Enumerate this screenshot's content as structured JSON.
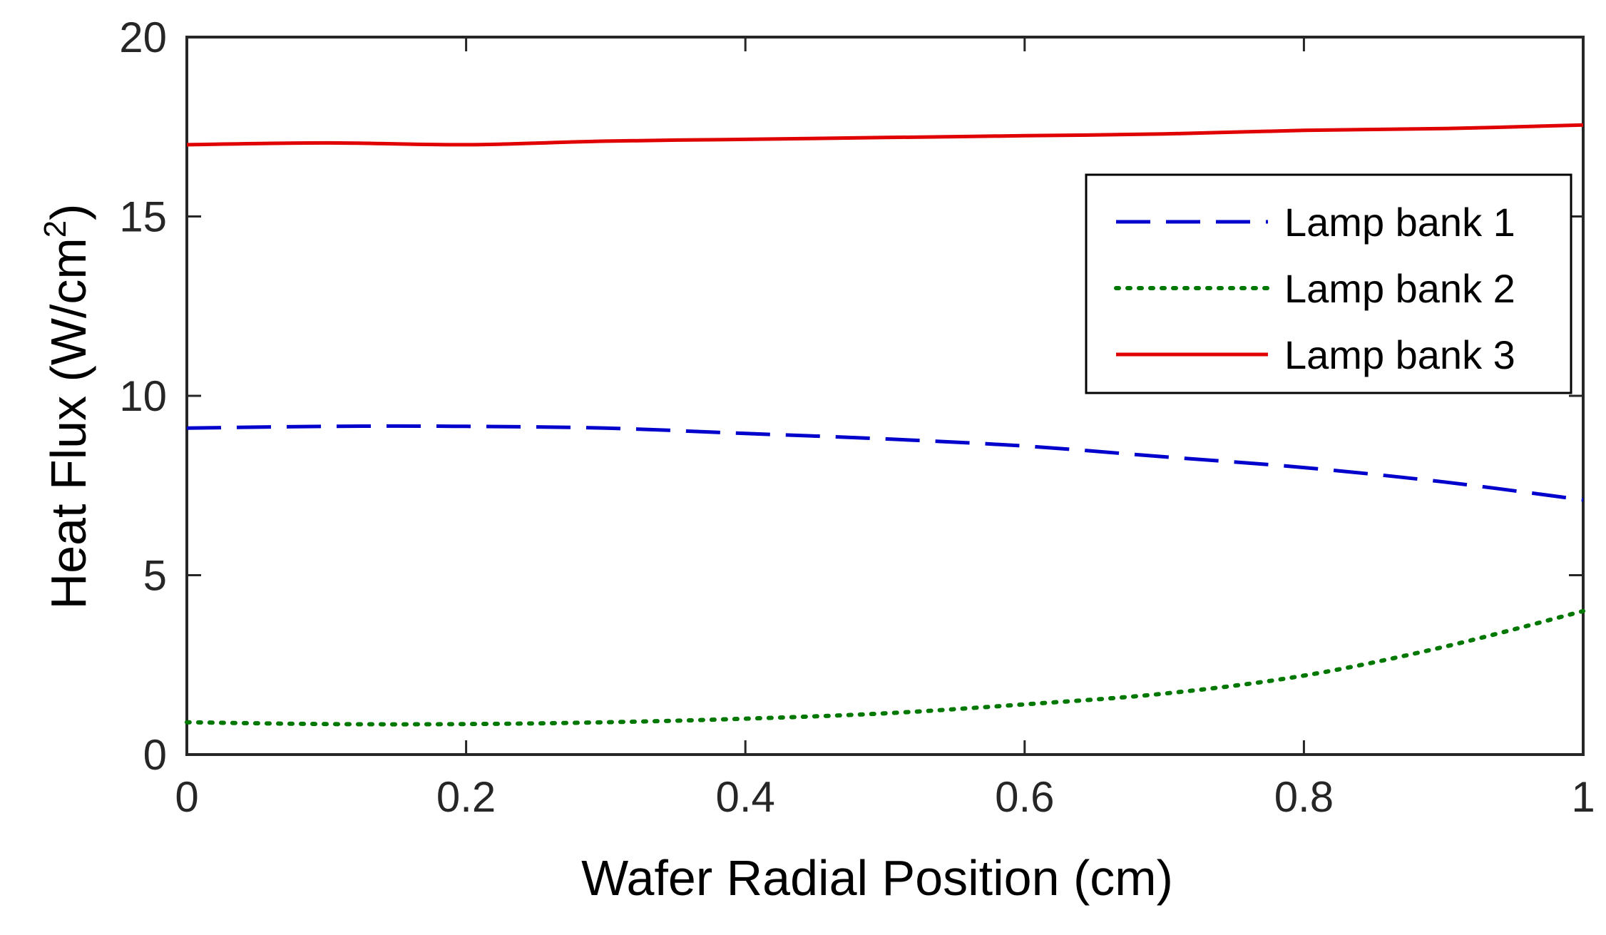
{
  "chart_data": {
    "type": "line",
    "title": "",
    "xlabel": "Wafer Radial Position (cm)",
    "ylabel": {
      "main": "Heat Flux (W/cm",
      "sup": "2",
      "close": ")"
    },
    "xlim": [
      0,
      1
    ],
    "ylim": [
      0,
      20
    ],
    "xticks": [
      0,
      0.2,
      0.4,
      0.6,
      0.8,
      1
    ],
    "xtick_labels": [
      "0",
      "0.2",
      "0.4",
      "0.6",
      "0.8",
      "1"
    ],
    "yticks": [
      0,
      5,
      10,
      15,
      20
    ],
    "ytick_labels": [
      "0",
      "5",
      "10",
      "15",
      "20"
    ],
    "grid": false,
    "legend_position": "upper-right",
    "x": [
      0,
      0.1,
      0.2,
      0.3,
      0.4,
      0.5,
      0.6,
      0.7,
      0.8,
      0.9,
      1.0
    ],
    "series": [
      {
        "name": "Lamp bank 1",
        "color": "#0000cc",
        "style": "dashed",
        "values": [
          9.1,
          9.15,
          9.15,
          9.1,
          8.95,
          8.8,
          8.6,
          8.3,
          8.0,
          7.6,
          7.1
        ]
      },
      {
        "name": "Lamp bank 2",
        "color": "#007700",
        "style": "dotted",
        "values": [
          0.9,
          0.85,
          0.85,
          0.9,
          1.0,
          1.15,
          1.4,
          1.7,
          2.2,
          3.0,
          4.0
        ]
      },
      {
        "name": "Lamp bank 3",
        "color": "#e00000",
        "style": "solid",
        "values": [
          17.0,
          17.05,
          17.0,
          17.1,
          17.15,
          17.2,
          17.25,
          17.3,
          17.4,
          17.45,
          17.55
        ]
      }
    ]
  }
}
